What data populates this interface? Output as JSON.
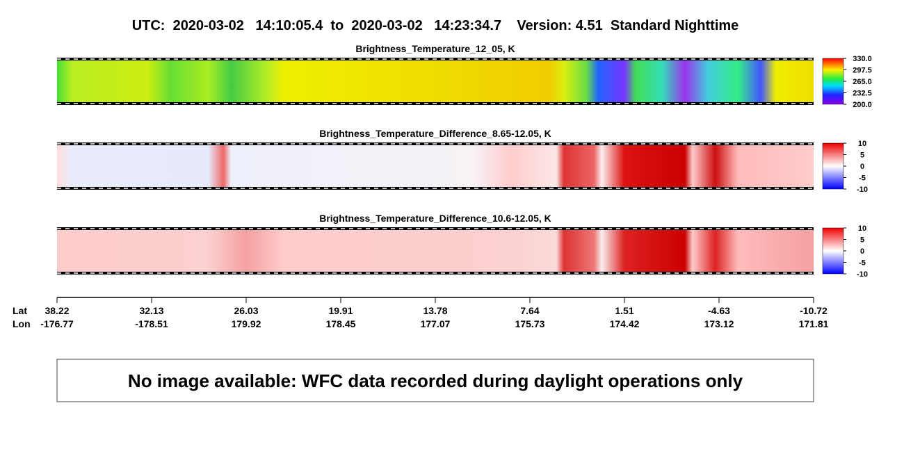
{
  "title": "UTC:  2020-03-02   14:10:05.4  to  2020-03-02   14:23:34.7    Version: 4.51  Standard Nighttime",
  "panels": [
    {
      "title": "Brightness_Temperature_12_05, K",
      "colorbar": {
        "range": [
          200,
          330
        ],
        "ticks": [
          {
            "value": 330,
            "label": "330.0"
          },
          {
            "value": 297.5,
            "label": "297.5"
          },
          {
            "value": 265,
            "label": "265.0"
          },
          {
            "value": 232.5,
            "label": "232.5"
          },
          {
            "value": 200,
            "label": "200.0"
          }
        ]
      }
    },
    {
      "title": "Brightness_Temperature_Difference_8.65-12.05, K",
      "colorbar": {
        "range": [
          -10,
          10
        ],
        "ticks": [
          10,
          5,
          0,
          -5,
          -10
        ]
      }
    },
    {
      "title": "Brightness_Temperature_Difference_10.6-12.05, K",
      "colorbar": {
        "range": [
          -10,
          10
        ],
        "ticks": [
          10,
          5,
          0,
          -5,
          -10
        ]
      }
    }
  ],
  "axis": {
    "row_labels": [
      "Lat",
      "Lon"
    ],
    "lat": [
      "38.22",
      "32.13",
      "26.03",
      "19.91",
      "13.78",
      "7.64",
      "1.51",
      "-4.63",
      "-10.72"
    ],
    "lon": [
      "-176.77",
      "-178.51",
      "179.92",
      "178.45",
      "177.07",
      "175.73",
      "174.42",
      "173.12",
      "171.81"
    ]
  },
  "message": "No image available: WFC data recorded during daylight operations only"
}
